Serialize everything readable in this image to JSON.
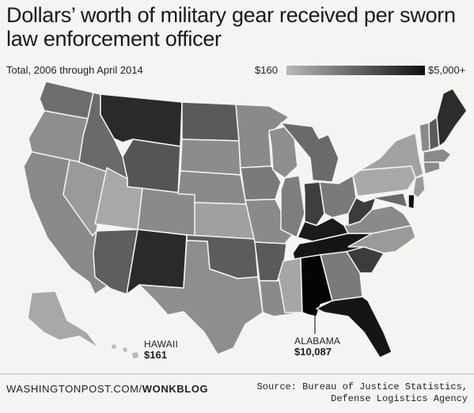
{
  "header": {
    "title": "Dollars’ worth of military gear received per sworn law enforcement officer",
    "subtitle": "Total, 2006 through April 2014"
  },
  "legend": {
    "min_label": "$160",
    "max_label": "$5,000+",
    "color_low": "#b8b8b8",
    "color_high": "#111111"
  },
  "callouts": {
    "hawaii": {
      "state": "HAWAII",
      "value": "$161"
    },
    "alabama": {
      "state": "ALABAMA",
      "value": "$10,087"
    }
  },
  "footer": {
    "brand_prefix": "WASHINGTONPOST.COM/",
    "brand_suffix": "WONKBLOG",
    "source_line1": "Source: Bureau of Justice Statistics,",
    "source_line2": "Defense Logistics Agency"
  },
  "map_fills": {
    "WA": "#6e6e6e",
    "OR": "#8e8e8e",
    "CA": "#8a8a8a",
    "NV": "#9a9a9a",
    "ID": "#6a6a6a",
    "MT": "#2a2a2a",
    "WY": "#555555",
    "UT": "#a8a8a8",
    "AZ": "#5e5e5e",
    "CO": "#8a8a8a",
    "NM": "#2a2a2a",
    "ND": "#5a5a5a",
    "SD": "#8c8c8c",
    "NE": "#8a8a8a",
    "KS": "#a0a0a0",
    "OK": "#5c5c5c",
    "TX": "#8e8e8e",
    "MN": "#8a8a8a",
    "IA": "#7a7a7a",
    "MO": "#8a8a8a",
    "AR": "#5a5a5a",
    "LA": "#8a8a8a",
    "WI": "#8e8e8e",
    "IL": "#7e7e7e",
    "MI": "#6a6a6a",
    "IN": "#3e3e3e",
    "OH": "#7a7a7a",
    "KY": "#1a1a1a",
    "TN": "#151515",
    "MS": "#a6a6a6",
    "AL": "#050505",
    "GA": "#7a7a7a",
    "FL": "#151515",
    "SC": "#3c3c3c",
    "NC": "#9a9a9a",
    "VA": "#8a8a8a",
    "WV": "#3c3c3c",
    "PA": "#a8a8a8",
    "NY": "#a2a2a2",
    "ME": "#2c2c2c",
    "NH": "#5a5a5a",
    "VT": "#8a8a8a",
    "MA": "#8a8a8a",
    "CT": "#8a8a8a",
    "NJ": "#9a9a9a",
    "DE": "#0a0a0a",
    "MD": "#6a6a6a",
    "AK": "#a8a8a8",
    "HI": "#b8b8b8"
  }
}
